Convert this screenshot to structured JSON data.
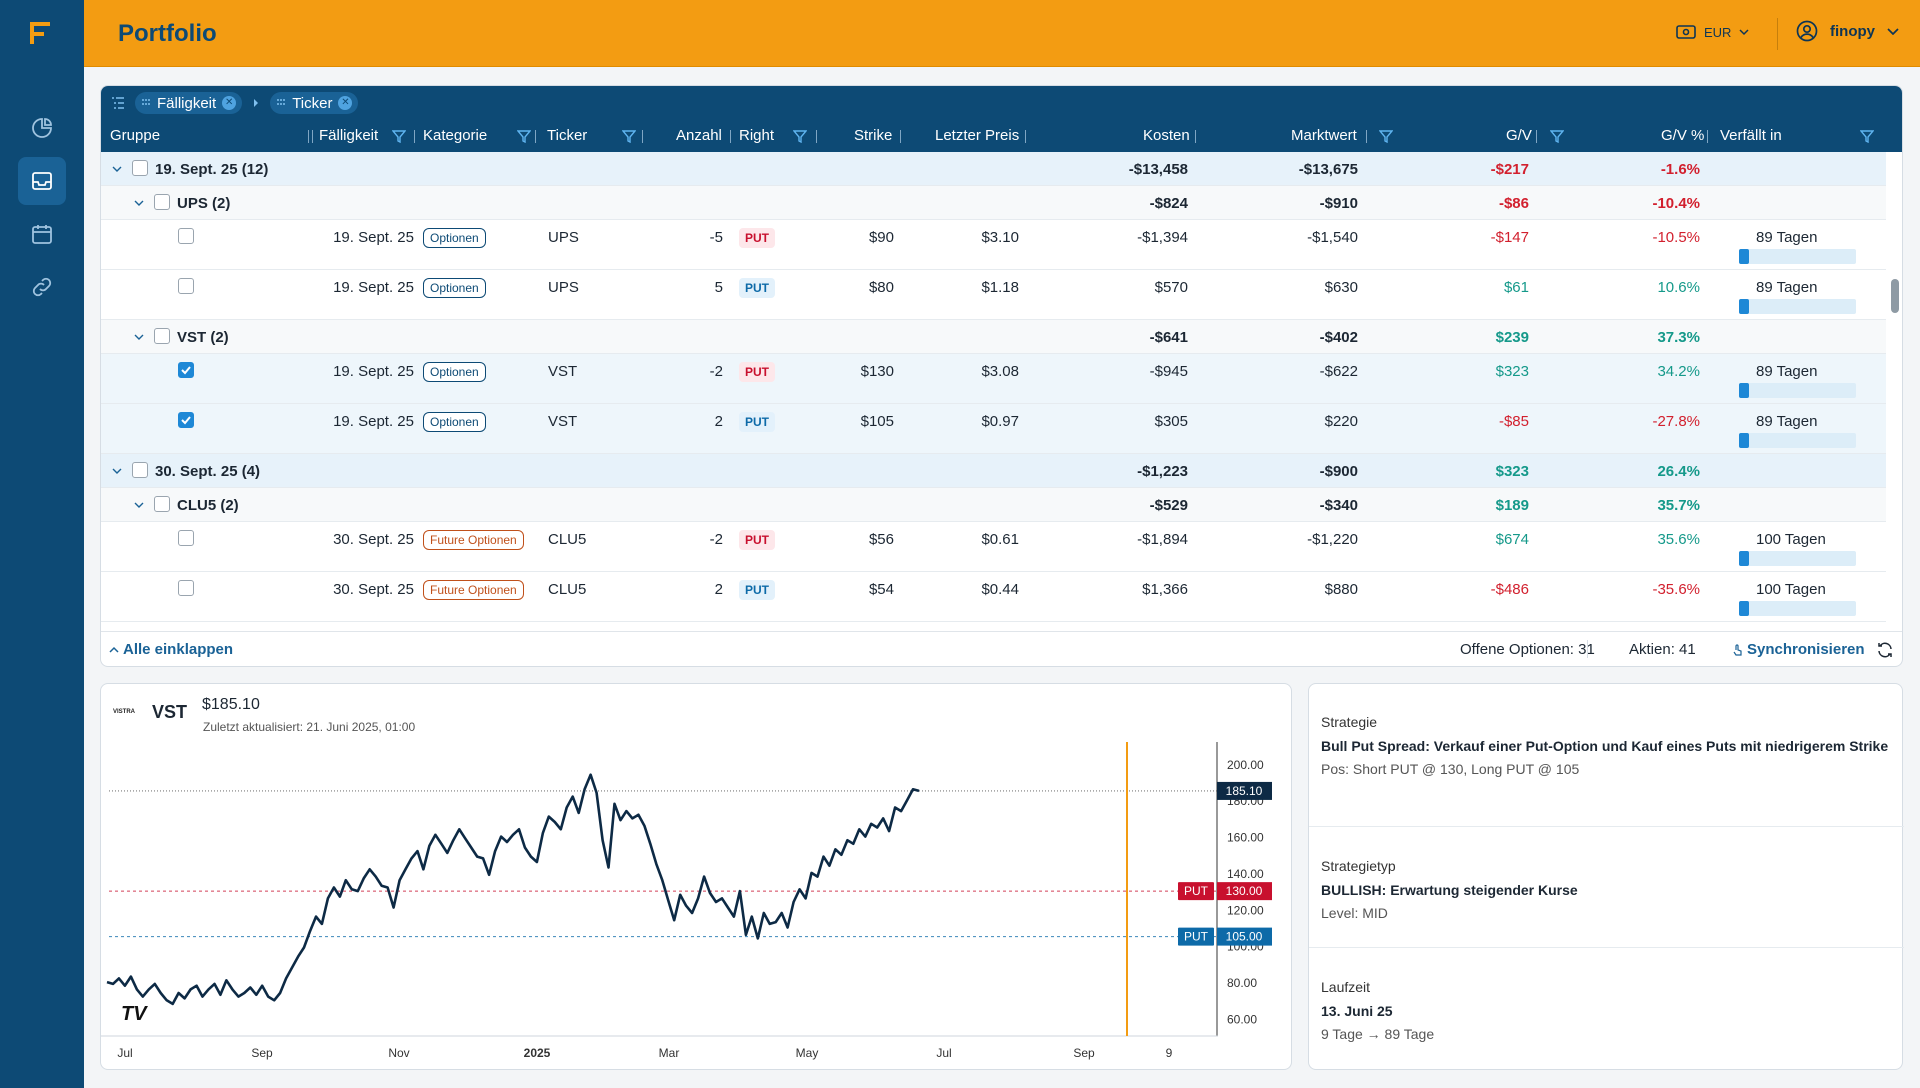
{
  "app": {
    "title": "Portfolio",
    "currency": "EUR",
    "user": "finopy",
    "logo_letter": "F"
  },
  "sidebar": {
    "items": [
      {
        "icon": "pie-chart-icon",
        "active": false
      },
      {
        "icon": "inbox-icon",
        "active": true
      },
      {
        "icon": "calendar-icon",
        "active": false
      },
      {
        "icon": "link-icon",
        "active": false
      }
    ]
  },
  "grouping": {
    "chips": [
      "Fälligkeit",
      "Ticker"
    ]
  },
  "columns": {
    "gruppe": "Gruppe",
    "faelligkeit": "Fälligkeit",
    "kategorie": "Kategorie",
    "ticker": "Ticker",
    "anzahl": "Anzahl",
    "right": "Right",
    "strike": "Strike",
    "preis": "Letzter Preis",
    "kosten": "Kosten",
    "marktwert": "Marktwert",
    "gv": "G/V",
    "gvp": "G/V %",
    "verfaellt": "Verfällt in"
  },
  "rows": [
    {
      "type": "g1",
      "label": "19. Sept. 25 (12)",
      "kosten": "-$13,458",
      "markt": "-$13,675",
      "gv": "-$217",
      "gvp": "-1.6%",
      "sign": "neg"
    },
    {
      "type": "g2",
      "label": "UPS (2)",
      "kosten": "-$824",
      "markt": "-$910",
      "gv": "-$86",
      "gvp": "-10.4%",
      "sign": "neg"
    },
    {
      "type": "d",
      "checked": false,
      "date": "19. Sept. 25",
      "kat": "Optionen",
      "kattype": "opt",
      "ticker": "UPS",
      "anzahl": "-5",
      "right": "PUT",
      "rcolor": "red",
      "strike": "$90",
      "preis": "$3.10",
      "kosten": "-$1,394",
      "markt": "-$1,540",
      "gv": "-$147",
      "gvp": "-10.5%",
      "sign": "neg",
      "days": "89 Tagen"
    },
    {
      "type": "d",
      "checked": false,
      "date": "19. Sept. 25",
      "kat": "Optionen",
      "kattype": "opt",
      "ticker": "UPS",
      "anzahl": "5",
      "right": "PUT",
      "rcolor": "blue",
      "strike": "$80",
      "preis": "$1.18",
      "kosten": "$570",
      "markt": "$630",
      "gv": "$61",
      "gvp": "10.6%",
      "sign": "pos",
      "days": "89 Tagen"
    },
    {
      "type": "g2",
      "label": "VST (2)",
      "kosten": "-$641",
      "markt": "-$402",
      "gv": "$239",
      "gvp": "37.3%",
      "sign": "pos"
    },
    {
      "type": "d",
      "checked": true,
      "date": "19. Sept. 25",
      "kat": "Optionen",
      "kattype": "opt",
      "ticker": "VST",
      "anzahl": "-2",
      "right": "PUT",
      "rcolor": "red",
      "strike": "$130",
      "preis": "$3.08",
      "kosten": "-$945",
      "markt": "-$622",
      "gv": "$323",
      "gvp": "34.2%",
      "sign": "pos",
      "days": "89 Tagen"
    },
    {
      "type": "d",
      "checked": true,
      "date": "19. Sept. 25",
      "kat": "Optionen",
      "kattype": "opt",
      "ticker": "VST",
      "anzahl": "2",
      "right": "PUT",
      "rcolor": "blue",
      "strike": "$105",
      "preis": "$0.97",
      "kosten": "$305",
      "markt": "$220",
      "gv": "-$85",
      "gvp": "-27.8%",
      "sign": "neg",
      "days": "89 Tagen"
    },
    {
      "type": "g1",
      "label": "30. Sept. 25 (4)",
      "kosten": "-$1,223",
      "markt": "-$900",
      "gv": "$323",
      "gvp": "26.4%",
      "sign": "pos"
    },
    {
      "type": "g2",
      "label": "CLU5 (2)",
      "kosten": "-$529",
      "markt": "-$340",
      "gv": "$189",
      "gvp": "35.7%",
      "sign": "pos"
    },
    {
      "type": "d",
      "checked": false,
      "date": "30. Sept. 25",
      "kat": "Future Optionen",
      "kattype": "fo",
      "ticker": "CLU5",
      "anzahl": "-2",
      "right": "PUT",
      "rcolor": "red",
      "strike": "$56",
      "preis": "$0.61",
      "kosten": "-$1,894",
      "markt": "-$1,220",
      "gv": "$674",
      "gvp": "35.6%",
      "sign": "pos",
      "days": "100 Tagen"
    },
    {
      "type": "d",
      "checked": false,
      "date": "30. Sept. 25",
      "kat": "Future Optionen",
      "kattype": "fo",
      "ticker": "CLU5",
      "anzahl": "2",
      "right": "PUT",
      "rcolor": "blue",
      "strike": "$54",
      "preis": "$0.44",
      "kosten": "$1,366",
      "markt": "$880",
      "gv": "-$486",
      "gvp": "-35.6%",
      "sign": "neg",
      "days": "100 Tagen"
    }
  ],
  "footer": {
    "collapse": "Alle einklappen",
    "open_options": "Offene Optionen: 31",
    "shares": "Aktien: 41",
    "sync": "Synchronisieren"
  },
  "chart": {
    "ticker": "VST",
    "logo_text": "VISTRA",
    "price": "$185.10",
    "updated": "Zuletzt aktualisiert: 21. Juni 2025, 01:00",
    "tv_logo": "TV"
  },
  "chart_data": {
    "type": "line",
    "x_ticks": [
      "Jul",
      "Sep",
      "Nov",
      "2025",
      "Mar",
      "May",
      "Jul",
      "Sep",
      "9"
    ],
    "y_ticks": [
      "200.00",
      "180.00",
      "160.00",
      "140.00",
      "120.00",
      "100.00",
      "80.00",
      "60.00"
    ],
    "ylim": [
      52,
      212
    ],
    "series": [
      {
        "values": [
          80,
          79,
          82,
          78,
          83,
          76,
          72,
          76,
          79,
          74,
          70,
          68,
          74,
          71,
          76,
          78,
          72,
          76,
          79,
          73,
          81,
          76,
          72,
          74,
          77,
          73,
          78,
          72,
          70,
          74,
          82,
          88,
          94,
          99,
          108,
          116,
          112,
          126,
          132,
          127,
          136,
          131,
          130,
          137,
          142,
          138,
          133,
          132,
          121,
          136,
          142,
          148,
          152,
          142,
          155,
          161,
          156,
          151,
          158,
          164,
          159,
          154,
          149,
          148,
          139,
          152,
          160,
          157,
          161,
          164,
          154,
          149,
          146,
          162,
          171,
          168,
          164,
          176,
          182,
          173,
          186,
          194,
          184,
          158,
          143,
          178,
          169,
          174,
          170,
          172,
          166,
          156,
          145,
          136,
          125,
          114,
          128,
          122,
          118,
          126,
          138,
          129,
          124,
          126,
          121,
          116,
          130,
          106,
          116,
          104,
          118,
          112,
          113,
          118,
          110,
          124,
          131,
          126,
          140,
          138,
          149,
          144,
          153,
          150,
          158,
          156,
          164,
          160,
          167,
          165,
          170,
          163,
          176,
          174,
          180,
          186,
          185.1
        ]
      }
    ],
    "price_line": 185.1,
    "markers": [
      {
        "label": "PUT",
        "value": "130.00",
        "color": "#c8102e"
      },
      {
        "label": "PUT",
        "value": "105.00",
        "color": "#0d6aa8"
      }
    ],
    "last_label": "185.10",
    "expiry_line": "9"
  },
  "strategy": {
    "s1_label": "Strategie",
    "s1_value": "Bull Put Spread: Verkauf einer Put-Option und Kauf eines Puts mit niedrigerem Strike",
    "s1_sub": "Pos: Short PUT @ 130, Long PUT @ 105",
    "s2_label": "Strategietyp",
    "s2_value": "BULLISH: Erwartung steigender Kurse",
    "s2_sub": "Level: MID",
    "s3_label": "Laufzeit",
    "s3_value": "13. Juni 25",
    "s3_sub": "9 Tage → 89 Tage"
  },
  "colors": {
    "brand": "#f39c12",
    "navy": "#0d4a75",
    "accent": "#1e88d6",
    "neg": "#d2202e",
    "pos": "#15998a"
  }
}
